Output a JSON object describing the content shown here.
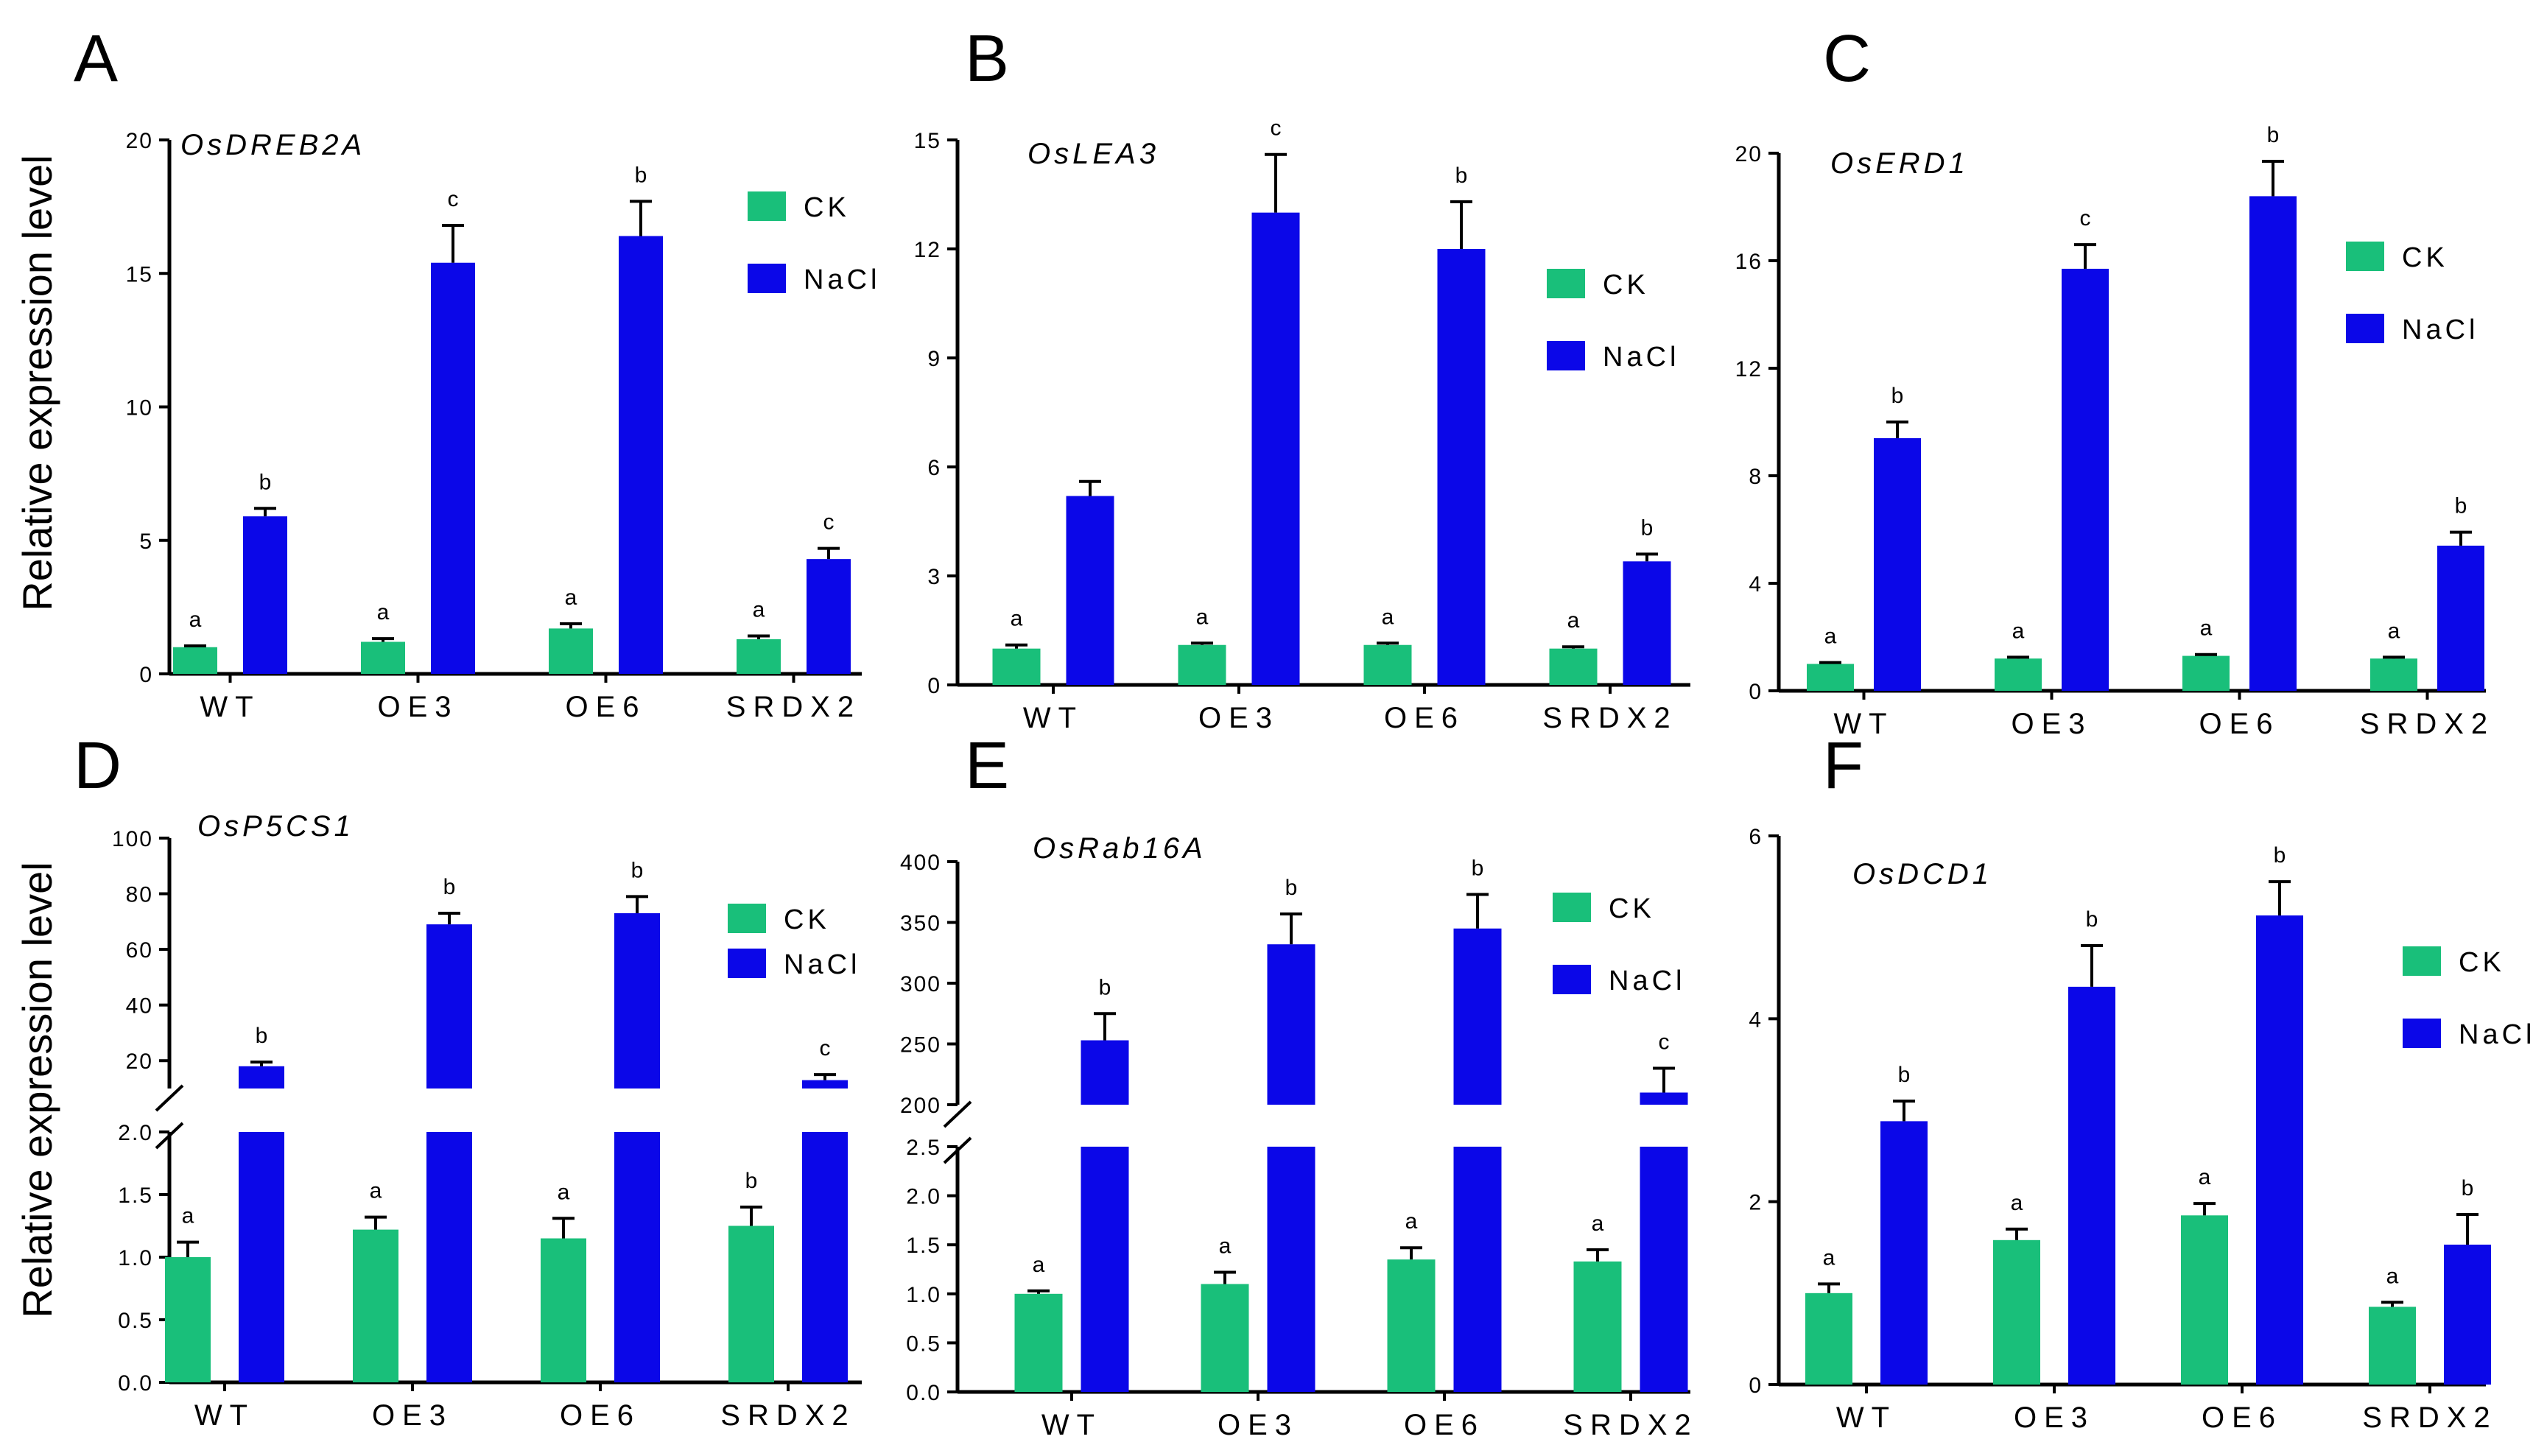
{
  "figure": {
    "ylabel_top": "Relative expression level",
    "ylabel_bottom": "Relative expression level",
    "colors": {
      "CK": "#19bf7a",
      "NaCl": "#0b07e8",
      "axis": "#000000"
    }
  },
  "chart_data": [
    {
      "panel": "A",
      "type": "bar",
      "title": "OsDREB2A",
      "categories": [
        "WT",
        "OE3",
        "OE6",
        "SRDX2"
      ],
      "legend": [
        "CK",
        "NaCl"
      ],
      "ylim": [
        0,
        20
      ],
      "y_ticks": [
        {
          "v": 0,
          "t": "0"
        },
        {
          "v": 5,
          "t": "5"
        },
        {
          "v": 10,
          "t": "10"
        },
        {
          "v": 15,
          "t": "15"
        },
        {
          "v": 20,
          "t": "20"
        }
      ],
      "series": [
        {
          "name": "CK",
          "values": [
            1.0,
            1.2,
            1.7,
            1.3
          ],
          "errors": [
            0.05,
            0.12,
            0.18,
            0.12
          ],
          "labels": [
            "a",
            "a",
            "a",
            "a"
          ]
        },
        {
          "name": "NaCl",
          "values": [
            5.9,
            15.4,
            16.4,
            4.3
          ],
          "errors": [
            0.3,
            1.4,
            1.3,
            0.4
          ],
          "labels": [
            "b",
            "c",
            "b",
            "c"
          ]
        }
      ]
    },
    {
      "panel": "B",
      "type": "bar",
      "title": "OsLEA3",
      "categories": [
        "WT",
        "OE3",
        "OE6",
        "SRDX2"
      ],
      "legend": [
        "CK",
        "NaCl"
      ],
      "ylim": [
        0,
        15
      ],
      "y_ticks": [
        {
          "v": 0,
          "t": "0"
        },
        {
          "v": 3,
          "t": "3"
        },
        {
          "v": 6,
          "t": "6"
        },
        {
          "v": 9,
          "t": "9"
        },
        {
          "v": 12,
          "t": "12"
        },
        {
          "v": 15,
          "t": "15"
        }
      ],
      "series": [
        {
          "name": "CK",
          "values": [
            1.0,
            1.1,
            1.1,
            1.0
          ],
          "errors": [
            0.1,
            0.05,
            0.05,
            0.05
          ],
          "labels": [
            "a",
            "a",
            "a",
            "a"
          ]
        },
        {
          "name": "NaCl",
          "values": [
            5.2,
            13.0,
            12.0,
            3.4
          ],
          "errors": [
            0.4,
            1.6,
            1.3,
            0.2
          ],
          "labels": [
            "",
            "c",
            "b",
            "b"
          ]
        }
      ]
    },
    {
      "panel": "C",
      "type": "bar",
      "title": "OsERD1",
      "categories": [
        "WT",
        "OE3",
        "OE6",
        "SRDX2"
      ],
      "legend": [
        "CK",
        "NaCl"
      ],
      "ylim": [
        0,
        20
      ],
      "y_ticks": [
        {
          "v": 0,
          "t": "0"
        },
        {
          "v": 4,
          "t": "4"
        },
        {
          "v": 8,
          "t": "8"
        },
        {
          "v": 12,
          "t": "12"
        },
        {
          "v": 16,
          "t": "16"
        },
        {
          "v": 20,
          "t": "20"
        }
      ],
      "series": [
        {
          "name": "CK",
          "values": [
            1.0,
            1.2,
            1.3,
            1.2
          ],
          "errors": [
            0.05,
            0.05,
            0.05,
            0.05
          ],
          "labels": [
            "a",
            "a",
            "a",
            "a"
          ]
        },
        {
          "name": "NaCl",
          "values": [
            9.4,
            15.7,
            18.4,
            5.4
          ],
          "errors": [
            0.6,
            0.9,
            1.3,
            0.5
          ],
          "labels": [
            "b",
            "c",
            "b",
            "b"
          ]
        }
      ]
    },
    {
      "panel": "D",
      "type": "bar",
      "title": "OsP5CS1",
      "categories": [
        "WT",
        "OE3",
        "OE6",
        "SRDX2"
      ],
      "legend": [
        "CK",
        "NaCl"
      ],
      "broken_axis": true,
      "ylim_lower": [
        0,
        2.0
      ],
      "ylim_upper": [
        10,
        100
      ],
      "y_ticks_lower": [
        {
          "v": 0,
          "t": "0.0"
        },
        {
          "v": 0.5,
          "t": "0.5"
        },
        {
          "v": 1.0,
          "t": "1.0"
        },
        {
          "v": 1.5,
          "t": "1.5"
        },
        {
          "v": 2.0,
          "t": "2.0"
        }
      ],
      "y_ticks_upper": [
        {
          "v": 20,
          "t": "20"
        },
        {
          "v": 40,
          "t": "40"
        },
        {
          "v": 60,
          "t": "60"
        },
        {
          "v": 80,
          "t": "80"
        },
        {
          "v": 100,
          "t": "100"
        }
      ],
      "series": [
        {
          "name": "CK",
          "values": [
            1.0,
            1.22,
            1.15,
            1.25
          ],
          "errors": [
            0.12,
            0.1,
            0.16,
            0.15
          ],
          "labels": [
            "a",
            "a",
            "a",
            "b"
          ]
        },
        {
          "name": "NaCl",
          "values": [
            18,
            69,
            73,
            13
          ],
          "errors": [
            1.5,
            4,
            6,
            2
          ],
          "labels": [
            "b",
            "b",
            "b",
            "c"
          ]
        }
      ]
    },
    {
      "panel": "E",
      "type": "bar",
      "title": "OsRab16A",
      "categories": [
        "WT",
        "OE3",
        "OE6",
        "SRDX2"
      ],
      "legend": [
        "CK",
        "NaCl"
      ],
      "broken_axis": true,
      "ylim_lower": [
        0,
        2.5
      ],
      "ylim_upper": [
        200,
        400
      ],
      "y_ticks_lower": [
        {
          "v": 0,
          "t": "0.0"
        },
        {
          "v": 0.5,
          "t": "0.5"
        },
        {
          "v": 1.0,
          "t": "1.0"
        },
        {
          "v": 1.5,
          "t": "1.5"
        },
        {
          "v": 2.0,
          "t": "2.0"
        },
        {
          "v": 2.5,
          "t": "2.5"
        }
      ],
      "y_ticks_upper": [
        {
          "v": 200,
          "t": "200"
        },
        {
          "v": 250,
          "t": "250"
        },
        {
          "v": 300,
          "t": "300"
        },
        {
          "v": 350,
          "t": "350"
        },
        {
          "v": 400,
          "t": "400"
        }
      ],
      "series": [
        {
          "name": "CK",
          "values": [
            1.0,
            1.1,
            1.35,
            1.33
          ],
          "errors": [
            0.03,
            0.12,
            0.12,
            0.12
          ],
          "labels": [
            "a",
            "a",
            "a",
            "a"
          ]
        },
        {
          "name": "NaCl",
          "values": [
            253,
            332,
            345,
            210
          ],
          "errors": [
            22,
            25,
            28,
            20
          ],
          "labels": [
            "b",
            "b",
            "b",
            "c"
          ]
        }
      ]
    },
    {
      "panel": "F",
      "type": "bar",
      "title": "OsDCD1",
      "categories": [
        "WT",
        "OE3",
        "OE6",
        "SRDX2"
      ],
      "legend": [
        "CK",
        "NaCl"
      ],
      "ylim": [
        0,
        6
      ],
      "y_ticks": [
        {
          "v": 0,
          "t": "0"
        },
        {
          "v": 2,
          "t": "2"
        },
        {
          "v": 4,
          "t": "4"
        },
        {
          "v": 6,
          "t": "6"
        }
      ],
      "series": [
        {
          "name": "CK",
          "values": [
            1.0,
            1.58,
            1.85,
            0.85
          ],
          "errors": [
            0.1,
            0.12,
            0.13,
            0.05
          ],
          "labels": [
            "a",
            "a",
            "a",
            "a"
          ]
        },
        {
          "name": "NaCl",
          "values": [
            2.88,
            4.35,
            5.13,
            1.53
          ],
          "errors": [
            0.22,
            0.45,
            0.37,
            0.33
          ],
          "labels": [
            "b",
            "b",
            "b",
            "b"
          ]
        }
      ]
    }
  ]
}
